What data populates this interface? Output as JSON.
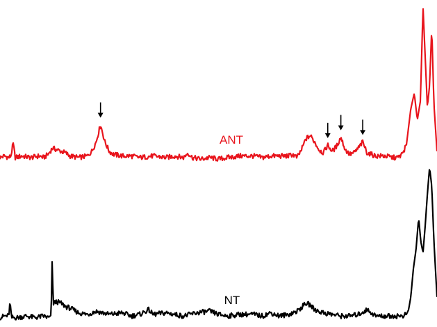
{
  "chart_data": {
    "type": "line",
    "title": "",
    "xlabel": "",
    "ylabel": "",
    "grid": false,
    "legend": "none",
    "x_range": [
      0,
      100
    ],
    "y_range": [
      0,
      100
    ],
    "series": [
      {
        "name": "ANT",
        "color": "#e8141c",
        "points": [
          [
            0,
            4
          ],
          [
            1,
            5
          ],
          [
            2,
            4
          ],
          [
            2.5,
            5
          ],
          [
            3,
            13
          ],
          [
            3.5,
            4
          ],
          [
            5,
            5
          ],
          [
            7,
            4
          ],
          [
            9,
            5
          ],
          [
            10,
            4
          ],
          [
            11,
            6
          ],
          [
            12,
            10
          ],
          [
            13,
            9
          ],
          [
            14,
            8
          ],
          [
            15,
            7
          ],
          [
            16,
            5
          ],
          [
            18,
            4
          ],
          [
            20,
            5
          ],
          [
            21,
            8
          ],
          [
            22,
            14
          ],
          [
            23,
            25
          ],
          [
            24,
            14
          ],
          [
            25,
            8
          ],
          [
            26,
            6
          ],
          [
            28,
            5
          ],
          [
            30,
            5
          ],
          [
            32,
            4
          ],
          [
            35,
            5
          ],
          [
            38,
            4
          ],
          [
            40,
            5
          ],
          [
            42,
            4
          ],
          [
            43,
            7
          ],
          [
            44,
            4
          ],
          [
            46,
            3
          ],
          [
            48,
            4
          ],
          [
            50,
            3
          ],
          [
            52,
            4
          ],
          [
            55,
            5
          ],
          [
            58,
            5
          ],
          [
            60,
            4
          ],
          [
            62,
            5
          ],
          [
            64,
            5
          ],
          [
            66,
            5
          ],
          [
            67,
            6
          ],
          [
            68,
            4
          ],
          [
            69,
            9
          ],
          [
            70,
            16
          ],
          [
            71,
            18
          ],
          [
            72,
            14
          ],
          [
            73,
            9
          ],
          [
            74,
            7
          ],
          [
            75,
            12
          ],
          [
            76,
            8
          ],
          [
            77,
            11
          ],
          [
            78,
            17
          ],
          [
            79,
            9
          ],
          [
            80,
            6
          ],
          [
            81,
            7
          ],
          [
            82,
            10
          ],
          [
            83,
            14
          ],
          [
            84,
            7
          ],
          [
            85,
            6
          ],
          [
            86,
            5
          ],
          [
            88,
            5
          ],
          [
            90,
            4
          ],
          [
            91,
            4
          ],
          [
            92,
            6
          ],
          [
            93,
            12
          ],
          [
            94,
            35
          ],
          [
            94.8,
            45
          ],
          [
            95.5,
            28
          ],
          [
            96.2,
            40
          ],
          [
            96.8,
            100
          ],
          [
            97.3,
            68
          ],
          [
            97.8,
            36
          ],
          [
            98.3,
            50
          ],
          [
            98.8,
            87
          ],
          [
            99.3,
            38
          ],
          [
            100,
            8
          ]
        ]
      },
      {
        "name": "NT",
        "color": "#000000",
        "points": [
          [
            0,
            2
          ],
          [
            1,
            3
          ],
          [
            2,
            3
          ],
          [
            2.3,
            12
          ],
          [
            2.6,
            2
          ],
          [
            4,
            2
          ],
          [
            6,
            3
          ],
          [
            8,
            2
          ],
          [
            10,
            3
          ],
          [
            11,
            2
          ],
          [
            11.7,
            2
          ],
          [
            11.9,
            38
          ],
          [
            12.2,
            11
          ],
          [
            13,
            12
          ],
          [
            14,
            11
          ],
          [
            15,
            9
          ],
          [
            16,
            8
          ],
          [
            18,
            5
          ],
          [
            20,
            4
          ],
          [
            22,
            6
          ],
          [
            25,
            4
          ],
          [
            28,
            5
          ],
          [
            30,
            3
          ],
          [
            32,
            4
          ],
          [
            34,
            7
          ],
          [
            35,
            4
          ],
          [
            38,
            5
          ],
          [
            40,
            4
          ],
          [
            42,
            3
          ],
          [
            45,
            5
          ],
          [
            48,
            6
          ],
          [
            50,
            4
          ],
          [
            52,
            3
          ],
          [
            55,
            4
          ],
          [
            58,
            4
          ],
          [
            60,
            3
          ],
          [
            62,
            5
          ],
          [
            64,
            3
          ],
          [
            66,
            4
          ],
          [
            68,
            6
          ],
          [
            70,
            11
          ],
          [
            71,
            10
          ],
          [
            72,
            7
          ],
          [
            74,
            5
          ],
          [
            76,
            4
          ],
          [
            78,
            3
          ],
          [
            80,
            3
          ],
          [
            82,
            4
          ],
          [
            84,
            7
          ],
          [
            85,
            5
          ],
          [
            86,
            3
          ],
          [
            88,
            3
          ],
          [
            90,
            3
          ],
          [
            92,
            3
          ],
          [
            93,
            4
          ],
          [
            93.5,
            7
          ],
          [
            94,
            15
          ],
          [
            94.6,
            33
          ],
          [
            95.2,
            45
          ],
          [
            95.8,
            65
          ],
          [
            96.3,
            50
          ],
          [
            96.8,
            43
          ],
          [
            97.3,
            60
          ],
          [
            97.8,
            80
          ],
          [
            98.3,
            97
          ],
          [
            98.8,
            85
          ],
          [
            99.3,
            50
          ],
          [
            100,
            15
          ]
        ]
      }
    ],
    "annotations": [
      {
        "type": "arrow",
        "series": "ANT",
        "x": 23
      },
      {
        "type": "arrow",
        "series": "ANT",
        "x": 75
      },
      {
        "type": "arrow",
        "series": "ANT",
        "x": 78
      },
      {
        "type": "arrow",
        "series": "ANT",
        "x": 83
      }
    ]
  }
}
